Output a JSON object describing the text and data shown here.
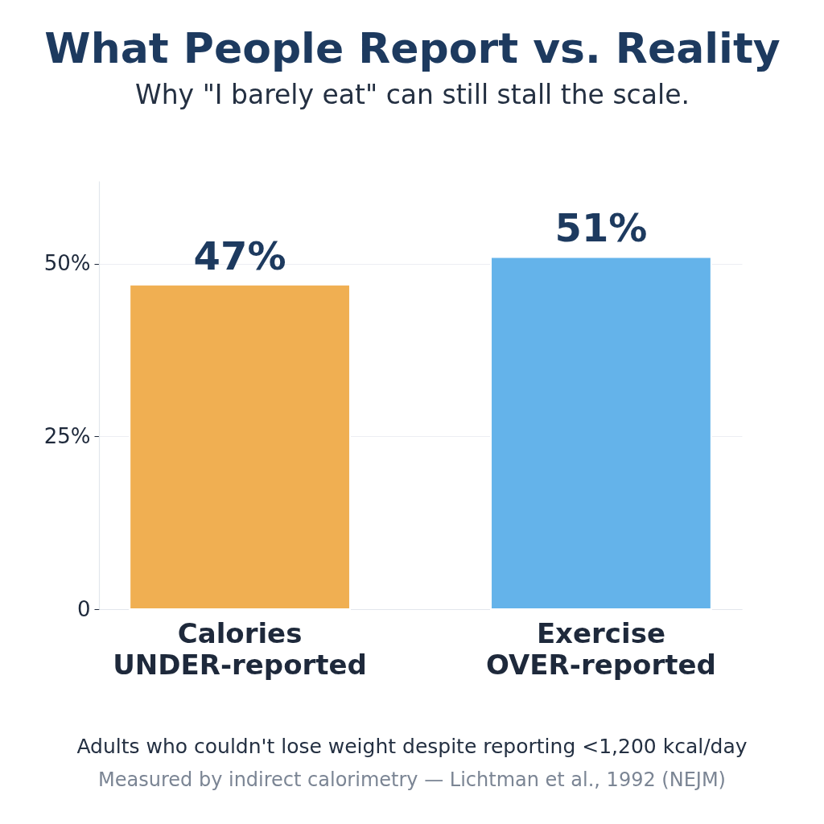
{
  "chart_data": {
    "type": "bar",
    "title": "What People Report vs. Reality",
    "subtitle": "Why \"I barely eat\" can still stall the scale.",
    "categories": [
      "Calories\nUNDER-reported",
      "Exercise\nOVER-reported"
    ],
    "values": [
      47,
      51
    ],
    "colors": [
      "#f0af52",
      "#64b3ea"
    ],
    "value_labels": [
      "47%",
      "51%"
    ],
    "ylim": [
      0,
      62
    ],
    "yticks": [
      0,
      {
        "value": 25,
        "label": "25%"
      },
      {
        "value": 50,
        "label": "50%"
      }
    ],
    "grid": "y",
    "annotations": [
      "Adults who couldn't lose weight despite reporting <1,200 kcal/day",
      "Measured by indirect calorimetry — Lichtman et al., 1992 (NEJM)"
    ]
  }
}
